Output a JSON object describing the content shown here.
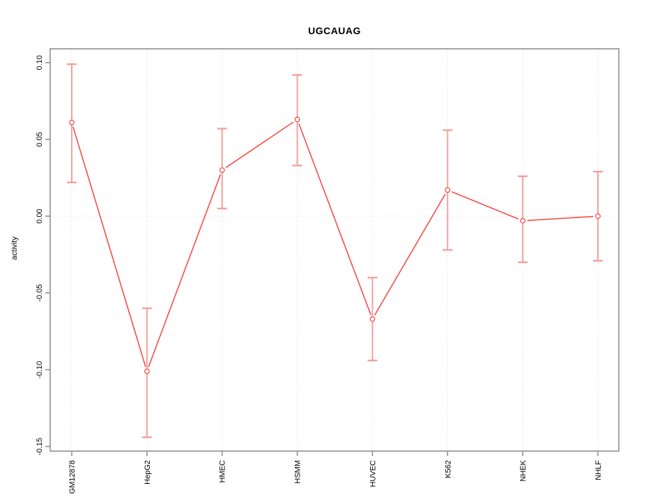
{
  "window": {
    "background": "#ffffff"
  },
  "chart_data": {
    "type": "line",
    "title": "UGCAUAG",
    "xlabel": "",
    "ylabel": "activity",
    "categories": [
      "GM12878",
      "HepG2",
      "HMEC",
      "HSMM",
      "HUVEC",
      "K562",
      "NHEK",
      "NHLF"
    ],
    "series": [
      {
        "name": "activity",
        "values": [
          0.061,
          -0.101,
          0.03,
          0.063,
          -0.067,
          0.017,
          -0.003,
          0.0
        ],
        "error_high": [
          0.099,
          -0.06,
          0.057,
          0.092,
          -0.04,
          0.056,
          0.026,
          0.029
        ],
        "error_low": [
          0.022,
          -0.144,
          0.005,
          0.033,
          -0.094,
          -0.022,
          -0.03,
          -0.029
        ]
      }
    ],
    "y_ticks": [
      0.1,
      0.05,
      0.0,
      -0.05,
      -0.1,
      -0.15
    ],
    "y_tick_labels": [
      "0.10",
      "0.05",
      "0.00",
      "-0.05",
      "-0.10",
      "-0.15"
    ],
    "ylim": [
      -0.153,
      0.109
    ],
    "grid": {
      "vertical_at_categories": true,
      "horizontal_at_zero": true,
      "style": "dotted"
    },
    "legend": "none",
    "marker": "open-circle",
    "colors": {
      "line": "#f8423c",
      "error_bar": "#f4a09d",
      "marker_stroke": "#f8423c",
      "marker_fill": "#ffffff",
      "grid": "#d6d6d6",
      "axis": "#8f8f8f",
      "text": "#000000",
      "background": "#ffffff"
    }
  }
}
